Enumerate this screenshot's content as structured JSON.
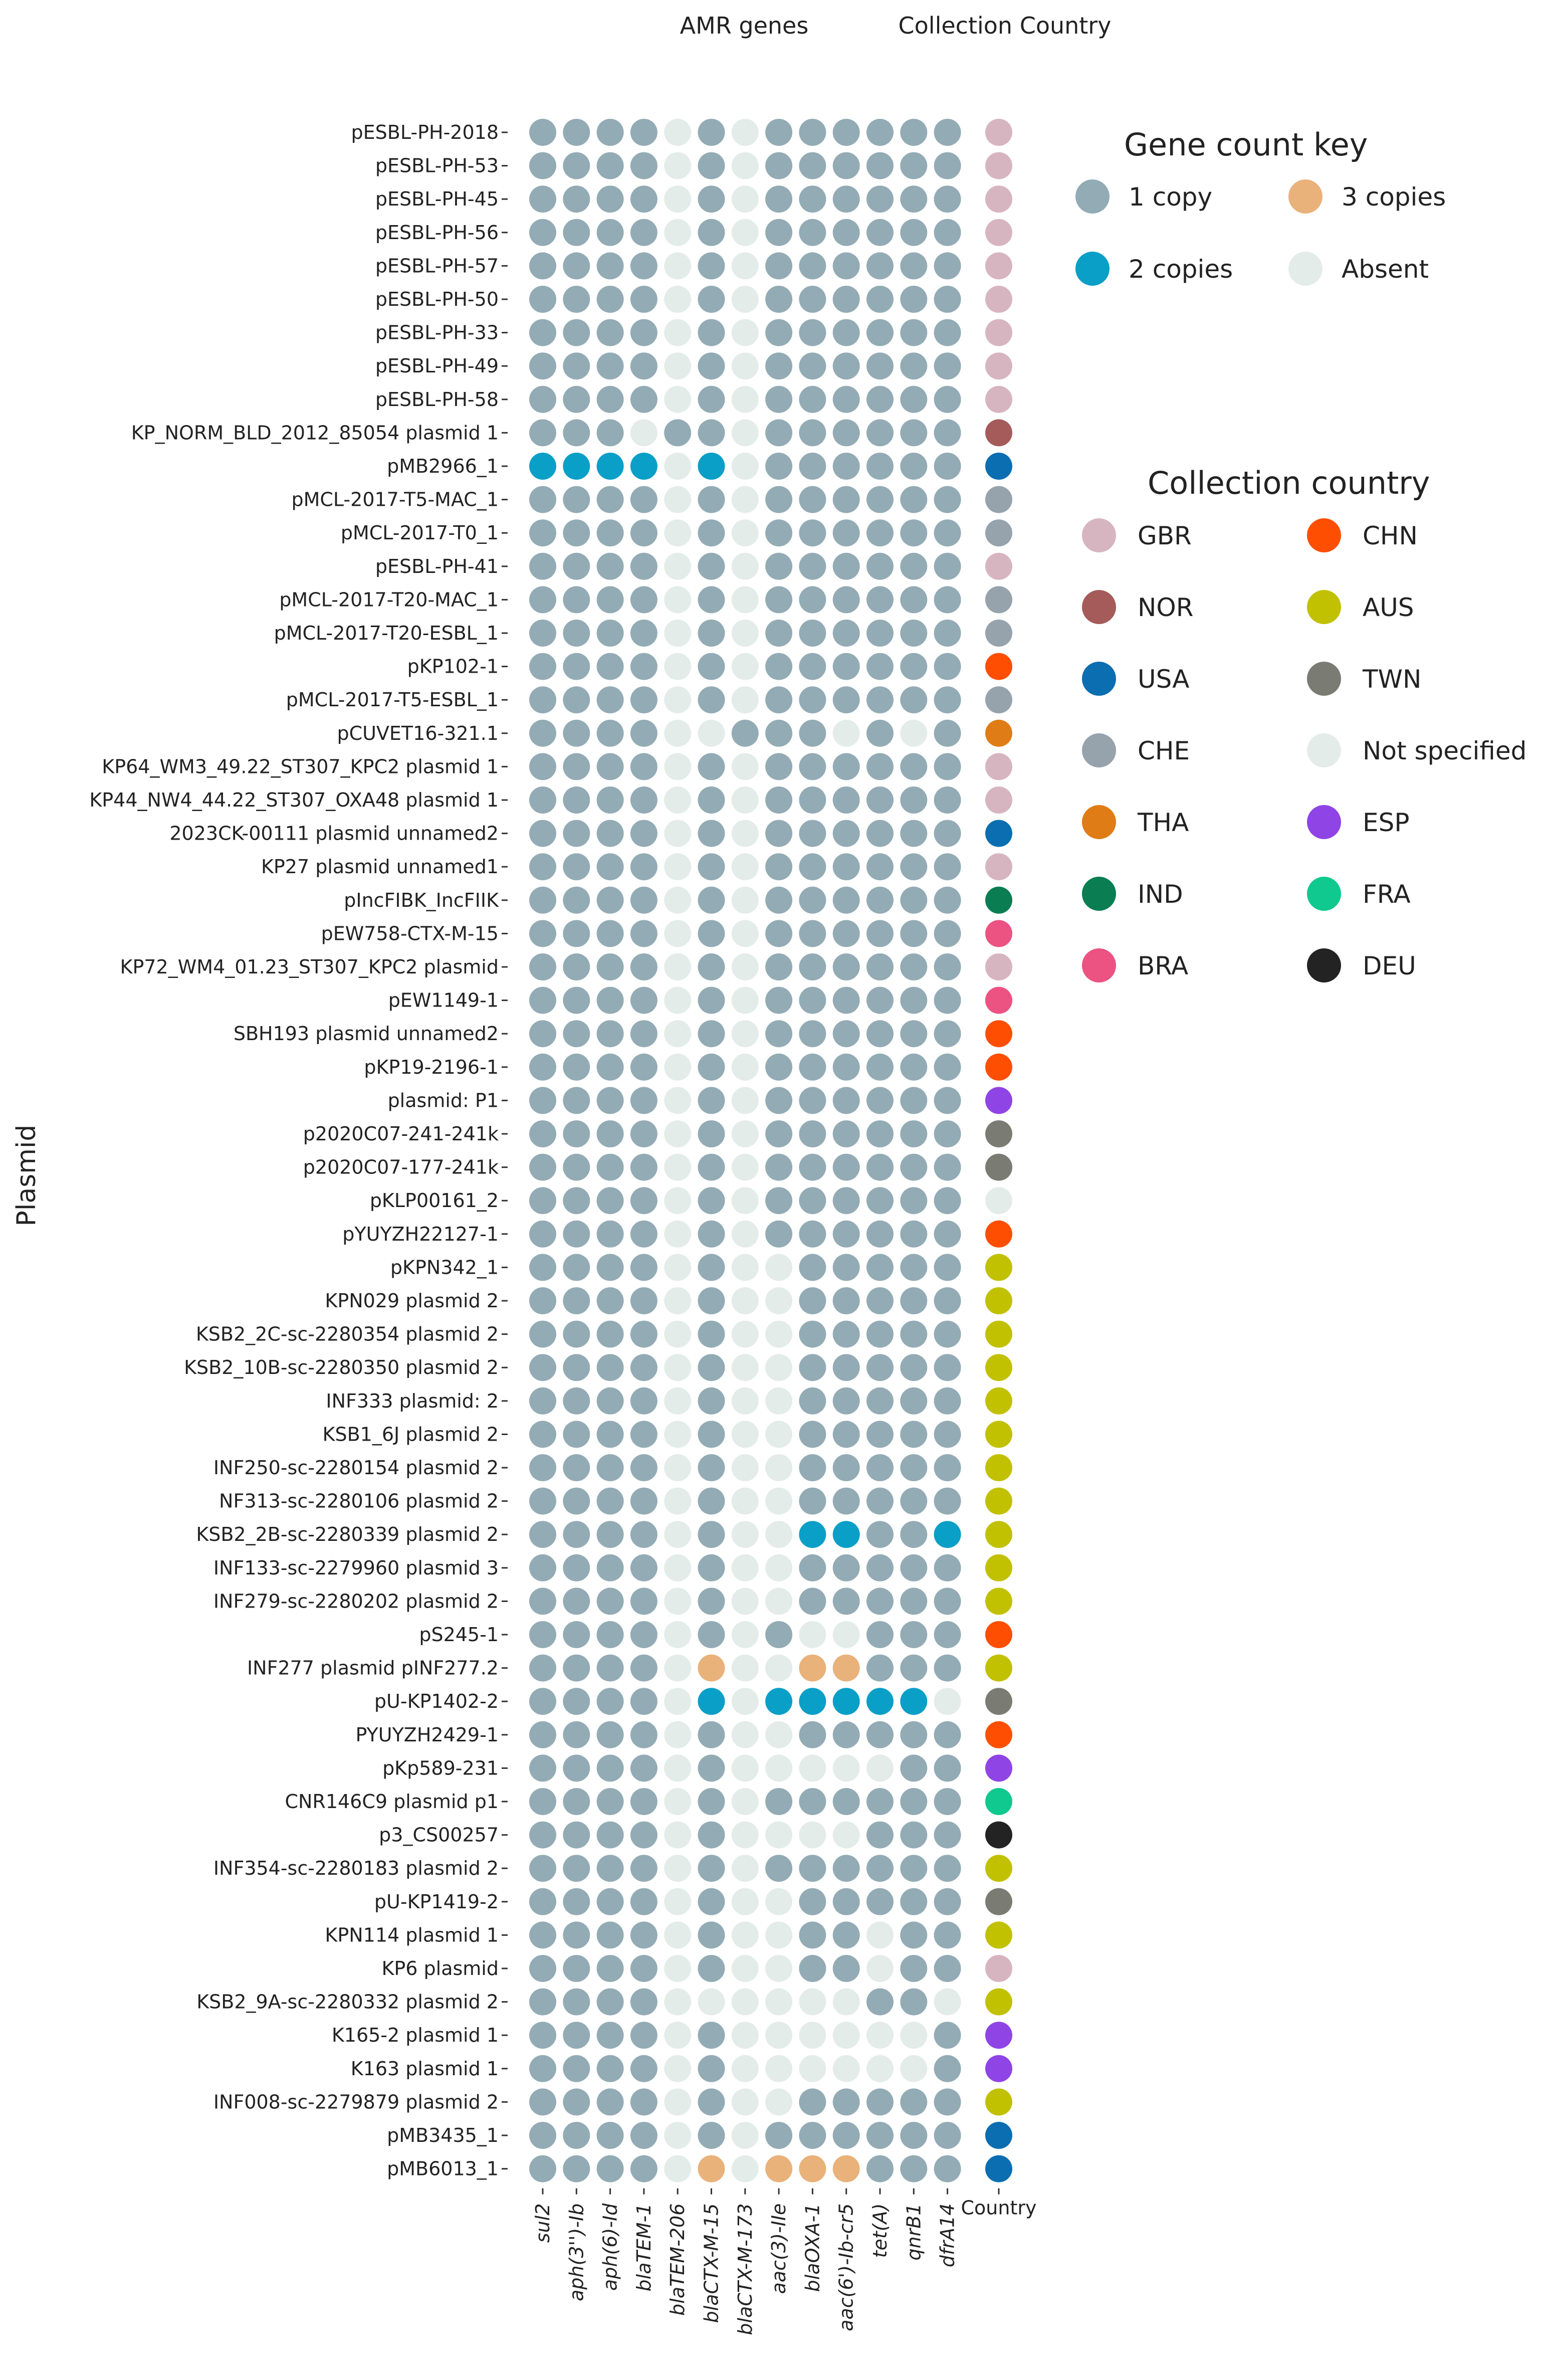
{
  "chart_data": {
    "type": "dot-matrix",
    "headers": {
      "amr": "AMR genes",
      "country": "Collection Country"
    },
    "ylabel": "Plasmid",
    "genes": [
      "sul2",
      "aph(3'')-Ib",
      "aph(6)-Id",
      "blaTEM-1",
      "blaTEM-206",
      "blaCTX-M-15",
      "blaCTX-M-173",
      "aac(3)-IIe",
      "blaOXA-1",
      "aac(6')-Ib-cr5",
      "tet(A)",
      "qnrB1",
      "dfrA14"
    ],
    "country_column_label": "Country",
    "gene_key": {
      "title": "Gene count key",
      "entries": [
        {
          "code": "1",
          "label": "1 copy",
          "color": "#93abb4"
        },
        {
          "code": "3",
          "label": "3 copies",
          "color": "#e9b27a"
        },
        {
          "code": "2",
          "label": "2 copies",
          "color": "#0a9fc7"
        },
        {
          "code": "0",
          "label": "Absent",
          "color": "#e4ecea"
        }
      ]
    },
    "country_key": {
      "title": "Collection country",
      "entries": [
        {
          "code": "GBR",
          "label": "GBR",
          "color": "#d7b5c0"
        },
        {
          "code": "CHN",
          "label": "CHN",
          "color": "#fe4e02"
        },
        {
          "code": "NOR",
          "label": "NOR",
          "color": "#a55b5a"
        },
        {
          "code": "AUS",
          "label": "AUS",
          "color": "#c1c102"
        },
        {
          "code": "USA",
          "label": "USA",
          "color": "#0a6eb1"
        },
        {
          "code": "TWN",
          "label": "TWN",
          "color": "#7a7b73"
        },
        {
          "code": "CHE",
          "label": "CHE",
          "color": "#96a2ac"
        },
        {
          "code": "NS",
          "label": "Not specified",
          "color": "#e4ecea"
        },
        {
          "code": "THA",
          "label": "THA",
          "color": "#e07c16"
        },
        {
          "code": "ESP",
          "label": "ESP",
          "color": "#8f44e5"
        },
        {
          "code": "IND",
          "label": "IND",
          "color": "#0a7e52"
        },
        {
          "code": "FRA",
          "label": "FRA",
          "color": "#0fc98e"
        },
        {
          "code": "BRA",
          "label": "BRA",
          "color": "#ec5282"
        },
        {
          "code": "DEU",
          "label": "DEU",
          "color": "#232323"
        }
      ]
    },
    "plasmids": [
      {
        "name": "pESBL-PH-2018",
        "genes": [
          1,
          1,
          1,
          1,
          0,
          1,
          0,
          1,
          1,
          1,
          1,
          1,
          1
        ],
        "country": "GBR"
      },
      {
        "name": "pESBL-PH-53",
        "genes": [
          1,
          1,
          1,
          1,
          0,
          1,
          0,
          1,
          1,
          1,
          1,
          1,
          1
        ],
        "country": "GBR"
      },
      {
        "name": "pESBL-PH-45",
        "genes": [
          1,
          1,
          1,
          1,
          0,
          1,
          0,
          1,
          1,
          1,
          1,
          1,
          1
        ],
        "country": "GBR"
      },
      {
        "name": "pESBL-PH-56",
        "genes": [
          1,
          1,
          1,
          1,
          0,
          1,
          0,
          1,
          1,
          1,
          1,
          1,
          1
        ],
        "country": "GBR"
      },
      {
        "name": "pESBL-PH-57",
        "genes": [
          1,
          1,
          1,
          1,
          0,
          1,
          0,
          1,
          1,
          1,
          1,
          1,
          1
        ],
        "country": "GBR"
      },
      {
        "name": "pESBL-PH-50",
        "genes": [
          1,
          1,
          1,
          1,
          0,
          1,
          0,
          1,
          1,
          1,
          1,
          1,
          1
        ],
        "country": "GBR"
      },
      {
        "name": "pESBL-PH-33",
        "genes": [
          1,
          1,
          1,
          1,
          0,
          1,
          0,
          1,
          1,
          1,
          1,
          1,
          1
        ],
        "country": "GBR"
      },
      {
        "name": "pESBL-PH-49",
        "genes": [
          1,
          1,
          1,
          1,
          0,
          1,
          0,
          1,
          1,
          1,
          1,
          1,
          1
        ],
        "country": "GBR"
      },
      {
        "name": "pESBL-PH-58",
        "genes": [
          1,
          1,
          1,
          1,
          0,
          1,
          0,
          1,
          1,
          1,
          1,
          1,
          1
        ],
        "country": "GBR"
      },
      {
        "name": "KP_NORM_BLD_2012_85054 plasmid 1",
        "genes": [
          1,
          1,
          1,
          0,
          1,
          1,
          0,
          1,
          1,
          1,
          1,
          1,
          1
        ],
        "country": "NOR"
      },
      {
        "name": "pMB2966_1",
        "genes": [
          2,
          2,
          2,
          2,
          0,
          2,
          0,
          1,
          1,
          1,
          1,
          1,
          1
        ],
        "country": "USA"
      },
      {
        "name": "pMCL-2017-T5-MAC_1",
        "genes": [
          1,
          1,
          1,
          1,
          0,
          1,
          0,
          1,
          1,
          1,
          1,
          1,
          1
        ],
        "country": "CHE"
      },
      {
        "name": "pMCL-2017-T0_1",
        "genes": [
          1,
          1,
          1,
          1,
          0,
          1,
          0,
          1,
          1,
          1,
          1,
          1,
          1
        ],
        "country": "CHE"
      },
      {
        "name": "pESBL-PH-41",
        "genes": [
          1,
          1,
          1,
          1,
          0,
          1,
          0,
          1,
          1,
          1,
          1,
          1,
          1
        ],
        "country": "GBR"
      },
      {
        "name": "pMCL-2017-T20-MAC_1",
        "genes": [
          1,
          1,
          1,
          1,
          0,
          1,
          0,
          1,
          1,
          1,
          1,
          1,
          1
        ],
        "country": "CHE"
      },
      {
        "name": "pMCL-2017-T20-ESBL_1",
        "genes": [
          1,
          1,
          1,
          1,
          0,
          1,
          0,
          1,
          1,
          1,
          1,
          1,
          1
        ],
        "country": "CHE"
      },
      {
        "name": "pKP102-1",
        "genes": [
          1,
          1,
          1,
          1,
          0,
          1,
          0,
          1,
          1,
          1,
          1,
          1,
          1
        ],
        "country": "CHN"
      },
      {
        "name": "pMCL-2017-T5-ESBL_1",
        "genes": [
          1,
          1,
          1,
          1,
          0,
          1,
          0,
          1,
          1,
          1,
          1,
          1,
          1
        ],
        "country": "CHE"
      },
      {
        "name": "pCUVET16-321.1",
        "genes": [
          1,
          1,
          1,
          1,
          0,
          0,
          1,
          1,
          1,
          0,
          1,
          0,
          1
        ],
        "country": "THA"
      },
      {
        "name": "KP64_WM3_49.22_ST307_KPC2 plasmid 1",
        "genes": [
          1,
          1,
          1,
          1,
          0,
          1,
          0,
          1,
          1,
          1,
          1,
          1,
          1
        ],
        "country": "GBR"
      },
      {
        "name": "KP44_NW4_44.22_ST307_OXA48 plasmid 1",
        "genes": [
          1,
          1,
          1,
          1,
          0,
          1,
          0,
          1,
          1,
          1,
          1,
          1,
          1
        ],
        "country": "GBR"
      },
      {
        "name": "2023CK-00111 plasmid unnamed2",
        "genes": [
          1,
          1,
          1,
          1,
          0,
          1,
          0,
          1,
          1,
          1,
          1,
          1,
          1
        ],
        "country": "USA"
      },
      {
        "name": "KP27 plasmid unnamed1",
        "genes": [
          1,
          1,
          1,
          1,
          0,
          1,
          0,
          1,
          1,
          1,
          1,
          1,
          1
        ],
        "country": "GBR"
      },
      {
        "name": "pIncFIBK_IncFIIK",
        "genes": [
          1,
          1,
          1,
          1,
          0,
          1,
          0,
          1,
          1,
          1,
          1,
          1,
          1
        ],
        "country": "IND"
      },
      {
        "name": "pEW758-CTX-M-15",
        "genes": [
          1,
          1,
          1,
          1,
          0,
          1,
          0,
          1,
          1,
          1,
          1,
          1,
          1
        ],
        "country": "BRA"
      },
      {
        "name": "KP72_WM4_01.23_ST307_KPC2 plasmid",
        "genes": [
          1,
          1,
          1,
          1,
          0,
          1,
          0,
          1,
          1,
          1,
          1,
          1,
          1
        ],
        "country": "GBR"
      },
      {
        "name": "pEW1149-1",
        "genes": [
          1,
          1,
          1,
          1,
          0,
          1,
          0,
          1,
          1,
          1,
          1,
          1,
          1
        ],
        "country": "BRA"
      },
      {
        "name": "SBH193 plasmid unnamed2",
        "genes": [
          1,
          1,
          1,
          1,
          0,
          1,
          0,
          1,
          1,
          1,
          1,
          1,
          1
        ],
        "country": "CHN"
      },
      {
        "name": "pKP19-2196-1",
        "genes": [
          1,
          1,
          1,
          1,
          0,
          1,
          0,
          1,
          1,
          1,
          1,
          1,
          1
        ],
        "country": "CHN"
      },
      {
        "name": "plasmid: P1",
        "genes": [
          1,
          1,
          1,
          1,
          0,
          1,
          0,
          1,
          1,
          1,
          1,
          1,
          1
        ],
        "country": "ESP"
      },
      {
        "name": "p2020C07-241-241k",
        "genes": [
          1,
          1,
          1,
          1,
          0,
          1,
          0,
          1,
          1,
          1,
          1,
          1,
          1
        ],
        "country": "TWN"
      },
      {
        "name": "p2020C07-177-241k",
        "genes": [
          1,
          1,
          1,
          1,
          0,
          1,
          0,
          1,
          1,
          1,
          1,
          1,
          1
        ],
        "country": "TWN"
      },
      {
        "name": "pKLP00161_2",
        "genes": [
          1,
          1,
          1,
          1,
          0,
          1,
          0,
          1,
          1,
          1,
          1,
          1,
          1
        ],
        "country": "NS"
      },
      {
        "name": "pYUYZH22127-1",
        "genes": [
          1,
          1,
          1,
          1,
          0,
          1,
          0,
          1,
          1,
          1,
          1,
          1,
          1
        ],
        "country": "CHN"
      },
      {
        "name": "pKPN342_1",
        "genes": [
          1,
          1,
          1,
          1,
          0,
          1,
          0,
          0,
          1,
          1,
          1,
          1,
          1
        ],
        "country": "AUS"
      },
      {
        "name": "KPN029 plasmid 2",
        "genes": [
          1,
          1,
          1,
          1,
          0,
          1,
          0,
          0,
          1,
          1,
          1,
          1,
          1
        ],
        "country": "AUS"
      },
      {
        "name": "KSB2_2C-sc-2280354 plasmid 2",
        "genes": [
          1,
          1,
          1,
          1,
          0,
          1,
          0,
          0,
          1,
          1,
          1,
          1,
          1
        ],
        "country": "AUS"
      },
      {
        "name": "KSB2_10B-sc-2280350 plasmid 2",
        "genes": [
          1,
          1,
          1,
          1,
          0,
          1,
          0,
          0,
          1,
          1,
          1,
          1,
          1
        ],
        "country": "AUS"
      },
      {
        "name": "INF333 plasmid: 2",
        "genes": [
          1,
          1,
          1,
          1,
          0,
          1,
          0,
          0,
          1,
          1,
          1,
          1,
          1
        ],
        "country": "AUS"
      },
      {
        "name": "KSB1_6J plasmid 2",
        "genes": [
          1,
          1,
          1,
          1,
          0,
          1,
          0,
          0,
          1,
          1,
          1,
          1,
          1
        ],
        "country": "AUS"
      },
      {
        "name": "INF250-sc-2280154 plasmid 2",
        "genes": [
          1,
          1,
          1,
          1,
          0,
          1,
          0,
          0,
          1,
          1,
          1,
          1,
          1
        ],
        "country": "AUS"
      },
      {
        "name": "NF313-sc-2280106 plasmid 2",
        "genes": [
          1,
          1,
          1,
          1,
          0,
          1,
          0,
          0,
          1,
          1,
          1,
          1,
          1
        ],
        "country": "AUS"
      },
      {
        "name": "KSB2_2B-sc-2280339 plasmid 2",
        "genes": [
          1,
          1,
          1,
          1,
          0,
          1,
          0,
          0,
          2,
          2,
          1,
          1,
          2
        ],
        "country": "AUS"
      },
      {
        "name": "INF133-sc-2279960 plasmid 3",
        "genes": [
          1,
          1,
          1,
          1,
          0,
          1,
          0,
          0,
          1,
          1,
          1,
          1,
          1
        ],
        "country": "AUS"
      },
      {
        "name": "INF279-sc-2280202 plasmid 2",
        "genes": [
          1,
          1,
          1,
          1,
          0,
          1,
          0,
          0,
          1,
          1,
          1,
          1,
          1
        ],
        "country": "AUS"
      },
      {
        "name": "pS245-1",
        "genes": [
          1,
          1,
          1,
          1,
          0,
          1,
          0,
          1,
          0,
          0,
          1,
          1,
          1
        ],
        "country": "CHN"
      },
      {
        "name": "INF277 plasmid pINF277.2",
        "genes": [
          1,
          1,
          1,
          1,
          0,
          3,
          0,
          0,
          3,
          3,
          1,
          1,
          1
        ],
        "country": "AUS"
      },
      {
        "name": "pU-KP1402-2",
        "genes": [
          1,
          1,
          1,
          1,
          0,
          2,
          0,
          2,
          2,
          2,
          2,
          2,
          0
        ],
        "country": "TWN"
      },
      {
        "name": "PYUYZH2429-1",
        "genes": [
          1,
          1,
          1,
          1,
          0,
          1,
          0,
          0,
          1,
          1,
          1,
          1,
          1
        ],
        "country": "CHN"
      },
      {
        "name": "pKp589-231",
        "genes": [
          1,
          1,
          1,
          1,
          0,
          1,
          0,
          0,
          0,
          0,
          0,
          1,
          1
        ],
        "country": "ESP"
      },
      {
        "name": "CNR146C9 plasmid p1",
        "genes": [
          1,
          1,
          1,
          1,
          0,
          1,
          0,
          1,
          1,
          1,
          1,
          1,
          1
        ],
        "country": "FRA"
      },
      {
        "name": "p3_CS00257",
        "genes": [
          1,
          1,
          1,
          1,
          0,
          1,
          0,
          0,
          0,
          0,
          1,
          1,
          1
        ],
        "country": "DEU"
      },
      {
        "name": "INF354-sc-2280183 plasmid 2",
        "genes": [
          1,
          1,
          1,
          1,
          0,
          1,
          0,
          1,
          1,
          1,
          1,
          1,
          1
        ],
        "country": "AUS"
      },
      {
        "name": "pU-KP1419-2",
        "genes": [
          1,
          1,
          1,
          1,
          0,
          1,
          0,
          0,
          1,
          1,
          1,
          1,
          1
        ],
        "country": "TWN"
      },
      {
        "name": "KPN114 plasmid 1",
        "genes": [
          1,
          1,
          1,
          1,
          0,
          1,
          0,
          0,
          1,
          1,
          0,
          1,
          1
        ],
        "country": "AUS"
      },
      {
        "name": "KP6 plasmid",
        "genes": [
          1,
          1,
          1,
          1,
          0,
          1,
          0,
          0,
          1,
          1,
          0,
          1,
          1
        ],
        "country": "GBR"
      },
      {
        "name": "KSB2_9A-sc-2280332 plasmid 2",
        "genes": [
          1,
          1,
          1,
          1,
          0,
          0,
          0,
          0,
          0,
          0,
          1,
          1,
          0
        ],
        "country": "AUS"
      },
      {
        "name": "K165-2 plasmid 1",
        "genes": [
          1,
          1,
          1,
          1,
          0,
          1,
          0,
          0,
          0,
          0,
          0,
          0,
          1
        ],
        "country": "ESP"
      },
      {
        "name": "K163 plasmid 1",
        "genes": [
          1,
          1,
          1,
          1,
          0,
          1,
          0,
          0,
          0,
          0,
          0,
          0,
          1
        ],
        "country": "ESP"
      },
      {
        "name": "INF008-sc-2279879 plasmid 2",
        "genes": [
          1,
          1,
          1,
          1,
          0,
          1,
          0,
          0,
          1,
          1,
          1,
          1,
          1
        ],
        "country": "AUS"
      },
      {
        "name": "pMB3435_1",
        "genes": [
          1,
          1,
          1,
          1,
          0,
          1,
          0,
          1,
          1,
          1,
          1,
          1,
          1
        ],
        "country": "USA"
      },
      {
        "name": "pMB6013_1",
        "genes": [
          1,
          1,
          1,
          1,
          0,
          3,
          0,
          3,
          3,
          3,
          1,
          1,
          1
        ],
        "country": "USA"
      }
    ]
  }
}
